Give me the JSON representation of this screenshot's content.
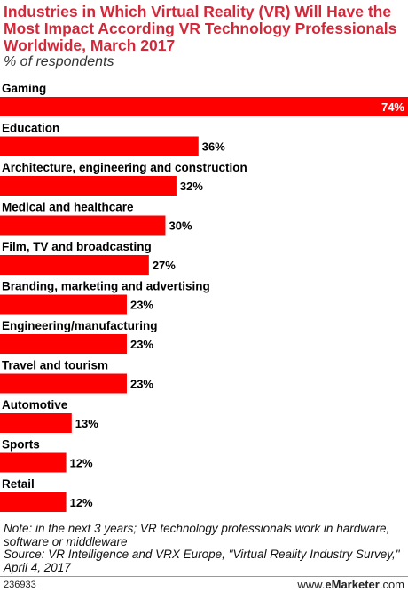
{
  "title": "Industries in Which Virtual Reality (VR) Will Have the Most Impact According VR Technology Professionals Worldwide, March 2017",
  "subtitle": "% of respondents",
  "colors": {
    "bar": "#ff0000",
    "title": "#d1293a"
  },
  "chart_data": {
    "type": "bar",
    "orientation": "horizontal",
    "categories": [
      "Gaming",
      "Education",
      "Architecture, engineering and construction",
      "Medical and healthcare",
      "Film, TV and broadcasting",
      "Branding, marketing and advertising",
      "Engineering/manufacturing",
      "Travel and tourism",
      "Automotive",
      "Sports",
      "Retail"
    ],
    "values": [
      74,
      36,
      32,
      30,
      27,
      23,
      23,
      23,
      13,
      12,
      12
    ],
    "value_labels": [
      "74%",
      "36%",
      "32%",
      "30%",
      "27%",
      "23%",
      "23%",
      "23%",
      "13%",
      "12%",
      "12%"
    ],
    "xlim": [
      0,
      74
    ],
    "grid": false,
    "legend": "none"
  },
  "note": "Note: in the next 3 years; VR technology professionals work in hardware, software or middleware",
  "source": "Source: VR Intelligence and VRX Europe, \"Virtual Reality Industry Survey,\" April 4, 2017",
  "footer": {
    "id": "236933",
    "brand_prefix": "www.",
    "brand_name": "eMarketer",
    "brand_suffix": ".com"
  }
}
